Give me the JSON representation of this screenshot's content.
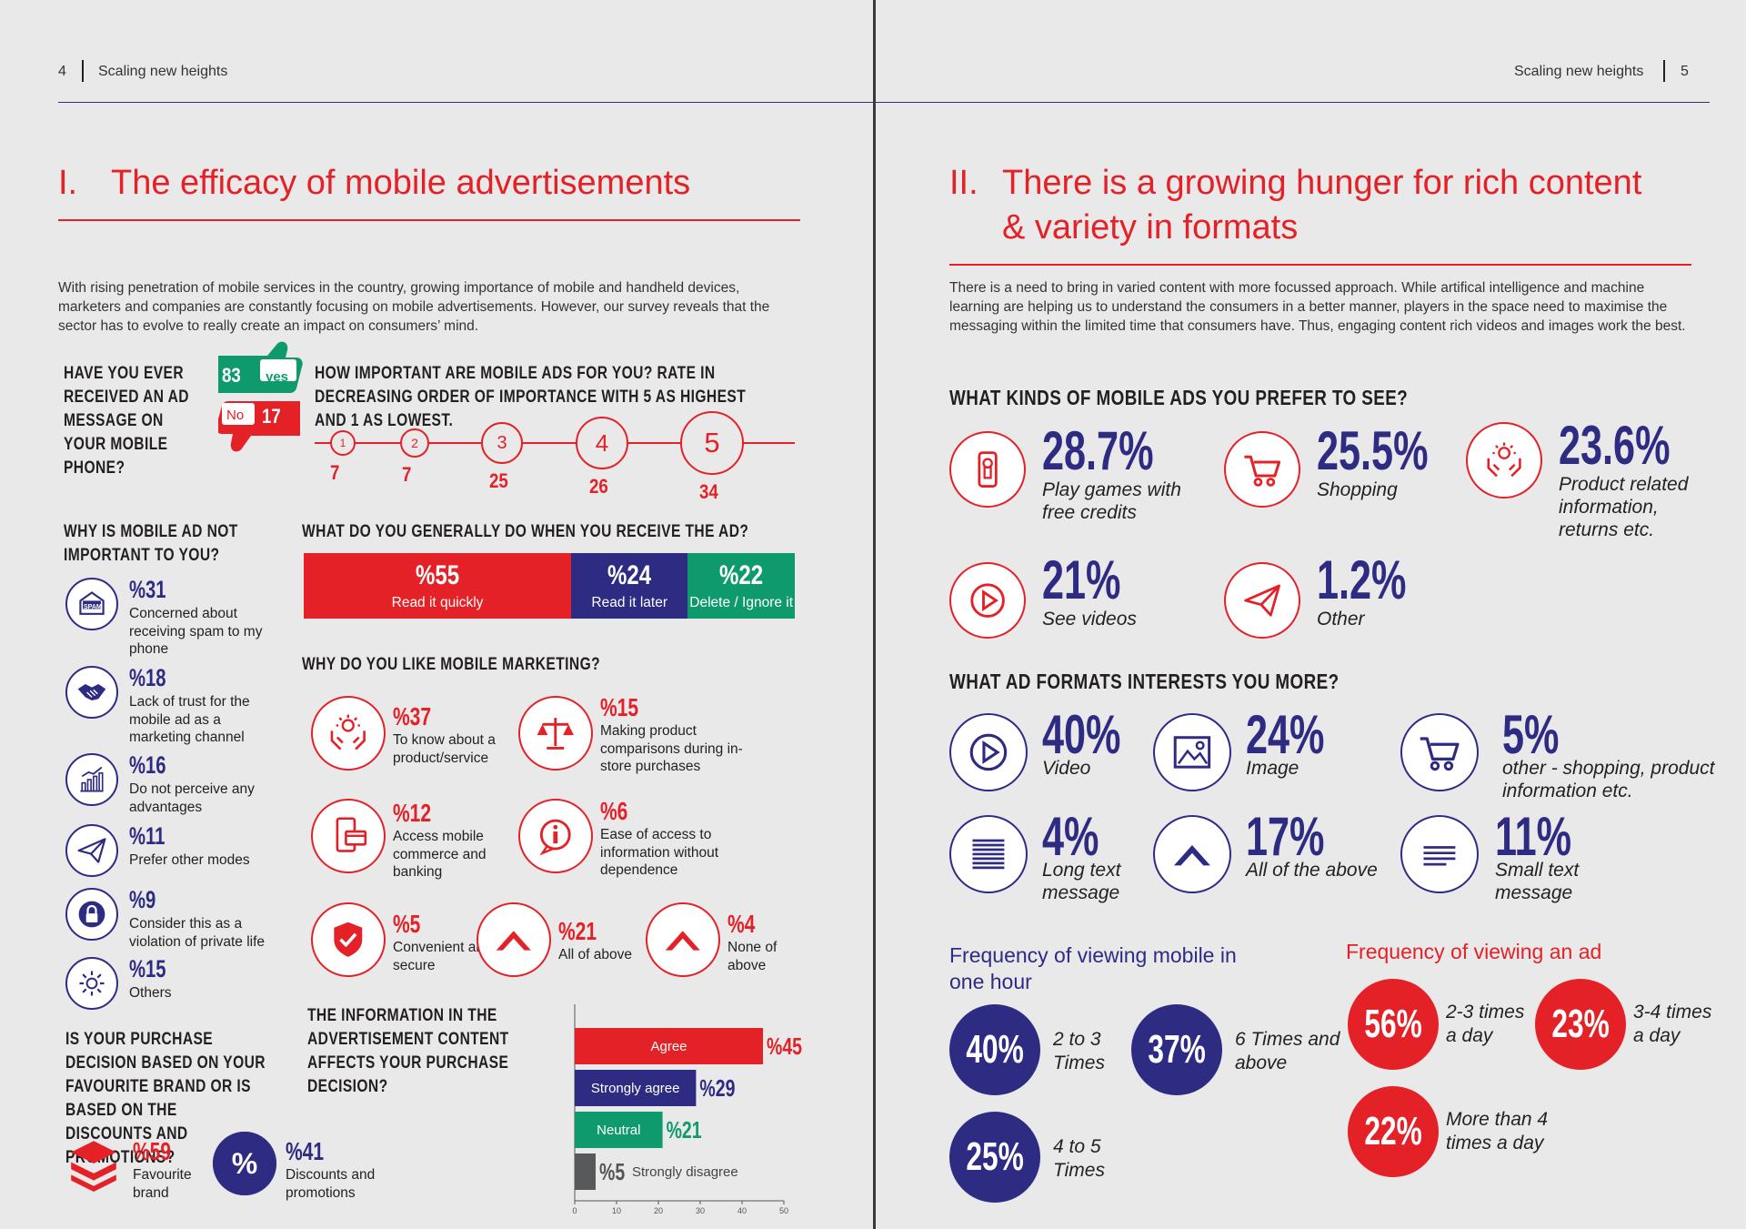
{
  "left": {
    "page_number": "4",
    "running_title": "Scaling new heights",
    "section_num": "I.",
    "section_title": "The efficacy of mobile advertisements",
    "intro": "With rising penetration of mobile services in the country, growing importance of mobile and handheld devices, marketers and companies are constantly focusing on mobile advertisements. However, our survey reveals that the sector has to evolve to really create an impact on consumers’ mind.",
    "received": {
      "question": "HAVE YOU EVER RECEIVED AN AD MESSAGE ON YOUR MOBILE PHONE?",
      "yes_value": "83",
      "yes_label": "yes",
      "no_value": "17",
      "no_label": "No",
      "colors": {
        "yes": "#0f9a6e",
        "no": "#e42127"
      }
    },
    "importance": {
      "question": "HOW IMPORTANT ARE MOBILE ADS FOR YOU? RATE IN DECREASING ORDER OF IMPORTANCE WITH 5 AS HIGHEST AND 1 AS LOWEST.",
      "ratings": [
        {
          "rating": "1",
          "value": "7"
        },
        {
          "rating": "2",
          "value": "7"
        },
        {
          "rating": "3",
          "value": "25"
        },
        {
          "rating": "4",
          "value": "26"
        },
        {
          "rating": "5",
          "value": "34"
        }
      ]
    },
    "not_important": {
      "question": "WHY IS MOBILE AD NOT IMPORTANT TO YOU?",
      "items": [
        {
          "pct": "%31",
          "text": "Concerned about receiving spam to my phone",
          "icon": "spam-envelope-icon",
          "icon_text": "SPAM"
        },
        {
          "pct": "%18",
          "text": "Lack of trust for the mobile ad as a marketing channel",
          "icon": "handshake-icon"
        },
        {
          "pct": "%16",
          "text": "Do not perceive any advantages",
          "icon": "bar-growth-icon"
        },
        {
          "pct": "%11",
          "text": "Prefer other modes",
          "icon": "paper-plane-icon"
        },
        {
          "pct": "%9",
          "text": "Consider this as a violation of private life",
          "icon": "lock-icon"
        },
        {
          "pct": "%15",
          "text": "Others",
          "icon": "gear-icon"
        }
      ]
    },
    "on_receive": {
      "question": "WHAT DO YOU GENERALLY DO WHEN YOU RECEIVE THE AD?",
      "segments": [
        {
          "pct": "%55",
          "label": "Read it quickly",
          "value": 55,
          "color": "#e42127"
        },
        {
          "pct": "%24",
          "label": "Read it later",
          "value": 24,
          "color": "#2e2b83"
        },
        {
          "pct": "%22",
          "label": "Delete / Ignore it",
          "value": 22,
          "color": "#0f9a6e"
        }
      ]
    },
    "like_marketing": {
      "question": "WHY DO YOU LIKE MOBILE MARKETING?",
      "items": [
        {
          "pct": "%37",
          "text": "To know about a product/service",
          "icon": "idea-hands-icon"
        },
        {
          "pct": "%15",
          "text": "Making product comparisons during in-store purchases",
          "icon": "balance-scale-icon"
        },
        {
          "pct": "%12",
          "text": "Access mobile commerce and banking",
          "icon": "mobile-card-icon"
        },
        {
          "pct": "%6",
          "text": "Ease of access to information without dependence",
          "icon": "info-bubble-icon"
        },
        {
          "pct": "%5",
          "text": "Convenient and secure",
          "icon": "shield-check-icon"
        },
        {
          "pct": "%21",
          "text": "All of above",
          "icon": "chevron-up-icon"
        },
        {
          "pct": "%4",
          "text": "None of above",
          "icon": "chevron-up-icon"
        }
      ]
    },
    "purchase_decision": {
      "question": "IS YOUR PURCHASE DECISION BASED ON YOUR FAVOURITE BRAND OR IS BASED ON THE DISCOUNTS AND PROMOTIONS?",
      "items": [
        {
          "pct": "%59",
          "text": "Favourite brand",
          "icon": "layers-icon"
        },
        {
          "pct": "%41",
          "text": "Discounts and promotions",
          "icon": "percent-badge-icon",
          "icon_text": "%"
        }
      ]
    },
    "chart_data": {
      "type": "bar",
      "title": "THE INFORMATION IN THE ADVERTISEMENT CONTENT AFFECTS YOUR PURCHASE DECISION?",
      "orientation": "horizontal",
      "categories": [
        "Agree",
        "Strongly agree",
        "Neutral",
        "Strongly disagree"
      ],
      "values": [
        45,
        29,
        21,
        5
      ],
      "value_labels": [
        "%45",
        "%29",
        "%21",
        "%5"
      ],
      "colors": [
        "#e42127",
        "#2e2b83",
        "#0f9a6e",
        "#58595b"
      ],
      "xlim": [
        0,
        50
      ],
      "xticks": [
        "0",
        "10",
        "20",
        "30",
        "40",
        "50"
      ]
    }
  },
  "right": {
    "page_number": "5",
    "running_title": "Scaling new heights",
    "section_num": "II.",
    "section_title_line1": "There is a growing hunger for rich content",
    "section_title_line2": "& variety in formats",
    "intro": "There is a need to bring in varied content with more focussed approach. While artifical intelligence and machine learning are helping us to understand the consumers in a better manner, players in the space need to maximise the messaging within the limited time that consumers have. Thus, engaging content rich videos and images work the best.",
    "kinds": {
      "question": "WHAT KINDS OF MOBILE ADS YOU PREFER TO SEE?",
      "items": [
        {
          "pct": "28.7%",
          "label": "Play games with free credits",
          "icon": "joystick-phone-icon"
        },
        {
          "pct": "25.5%",
          "label": "Shopping",
          "icon": "shopping-cart-icon"
        },
        {
          "pct": "23.6%",
          "label": "Product related information, returns etc.",
          "icon": "idea-hands-icon"
        },
        {
          "pct": "21%",
          "label": "See videos",
          "icon": "play-icon"
        },
        {
          "pct": "1.2%",
          "label": "Other",
          "icon": "paper-plane-icon"
        }
      ]
    },
    "formats": {
      "question": "WHAT AD FORMATS INTERESTS YOU MORE?",
      "items": [
        {
          "pct": "40%",
          "label": "Video",
          "icon": "play-icon"
        },
        {
          "pct": "24%",
          "label": "Image",
          "icon": "image-icon"
        },
        {
          "pct": "5%",
          "label": "other - shopping, product information etc.",
          "icon": "shopping-cart-icon"
        },
        {
          "pct": "4%",
          "label": "Long text message",
          "icon": "long-text-icon"
        },
        {
          "pct": "17%",
          "label": "All of the above",
          "icon": "chevron-up-icon"
        },
        {
          "pct": "11%",
          "label": "Small text message",
          "icon": "short-text-icon"
        }
      ]
    },
    "freq_mobile": {
      "title": "Frequency of viewing mobile in one hour",
      "items": [
        {
          "pct": "40%",
          "label": "2 to 3 Times"
        },
        {
          "pct": "37%",
          "label": "6 Times and above"
        },
        {
          "pct": "25%",
          "label": "4 to 5 Times"
        }
      ]
    },
    "freq_ad": {
      "title": "Frequency of viewing an ad",
      "items": [
        {
          "pct": "56%",
          "label": "2-3 times a day"
        },
        {
          "pct": "23%",
          "label": "3-4 times a day"
        },
        {
          "pct": "22%",
          "label": "More than 4 times a day"
        }
      ]
    },
    "colors": {
      "accent": "#e42127",
      "navy": "#2e2b83"
    }
  }
}
